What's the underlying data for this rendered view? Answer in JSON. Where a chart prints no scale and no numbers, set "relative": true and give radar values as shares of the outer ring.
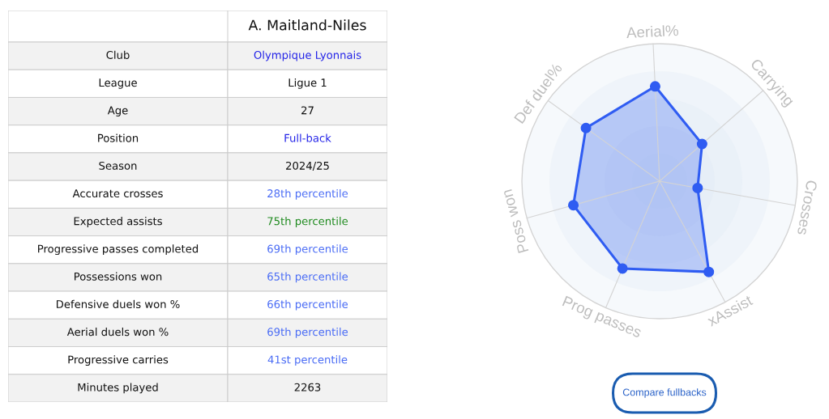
{
  "chart_data": [
    {
      "type": "other",
      "title": "A. Maitland-Niles",
      "categories": [
        "Club",
        "League",
        "Age",
        "Position",
        "Season",
        "Accurate crosses",
        "Expected assists",
        "Progressive passes completed",
        "Possessions won",
        "Defensive duels won %",
        "Aerial duels won %",
        "Progressive carries",
        "Minutes played"
      ],
      "value_labels": [
        "Olympique Lyonnais",
        "Ligue 1",
        "27",
        "Full-back",
        "2024/25",
        "28th percentile",
        "75th percentile",
        "69th percentile",
        "65th percentile",
        "66th percentile",
        "69th percentile",
        "41st percentile",
        "2263"
      ],
      "colors": [
        "#f2f2f2",
        "#ffffff",
        "#f2f2f2",
        "#ffffff",
        "#f2f2f2",
        "#ffffff",
        "#f2f2f2",
        "#ffffff",
        "#f2f2f2",
        "#ffffff",
        "#f2f2f2",
        "#ffffff",
        "#f2f2f2"
      ]
    },
    {
      "type": "radar",
      "categories": [
        "Aerial%",
        "Carrying",
        "Crosses",
        "xAssist",
        "Prog passes",
        "Poss won",
        "Def duel%"
      ],
      "relative": true,
      "series": [
        {
          "color": "#2f5cf2",
          "values": [
            0.69,
            0.41,
            0.28,
            0.75,
            0.69,
            0.65,
            0.66
          ]
        }
      ],
      "marker": "circle",
      "grid": true,
      "annotations": [
        "Compare fullbacks"
      ]
    }
  ]
}
